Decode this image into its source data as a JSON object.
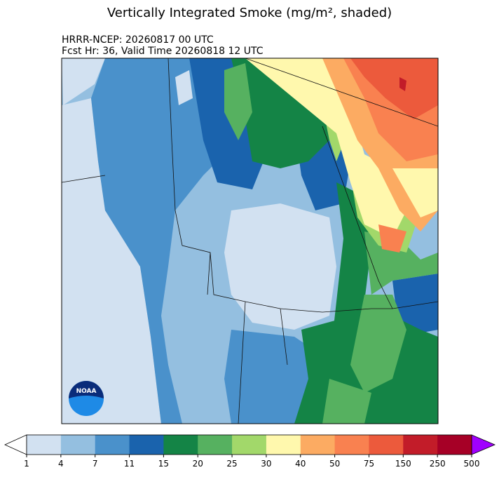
{
  "title": "Vertically Integrated Smoke (mg/m², shaded)",
  "subtitle_lines": [
    "HRRR-NCEP: 20260817 00 UTC",
    "Fcst Hr: 36, Valid Time 20260818 12 UTC"
  ],
  "logo": "NOAA",
  "colorbar": {
    "ticks": [
      1,
      4,
      7,
      11,
      15,
      20,
      25,
      30,
      40,
      50,
      75,
      150,
      250,
      500
    ],
    "colors": [
      "#d2e1f1",
      "#94bfe0",
      "#4a91cb",
      "#1a63ad",
      "#148446",
      "#56b160",
      "#a2d86a",
      "#fff8ad",
      "#fcab62",
      "#f98150",
      "#ec5a3c",
      "#c21c29",
      "#a60026"
    ],
    "under_color": "#ffffff",
    "over_color": "#a000ff"
  }
}
